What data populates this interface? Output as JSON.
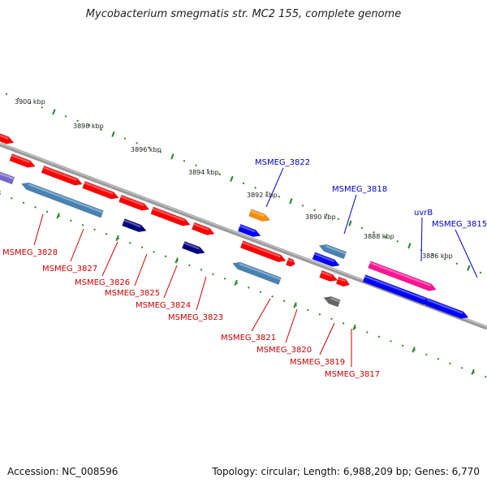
{
  "title": "Mycobacterium smegmatis str. MC2 155, complete genome",
  "footer": {
    "accession": "Accession: NC_008596",
    "topology": "Topology: circular; Length: 6,988,209 bp; Genes: 6,770"
  },
  "colors": {
    "backbone": "#8a8a8a",
    "tick": "#2a8a2a",
    "label_red": "#cc0000",
    "label_blue": "#0000cc"
  },
  "tick_labels": [
    "3900 kbp",
    "3898 kbp",
    "3896 kbp",
    "3894 kbp",
    "3892 kbp",
    "3890 kbp",
    "3888 kbp",
    "3886 kbp"
  ],
  "gene_labels": [
    {
      "text": "MSMEG_3828",
      "color": "red"
    },
    {
      "text": "MSMEG_3827",
      "color": "red"
    },
    {
      "text": "MSMEG_3826",
      "color": "red"
    },
    {
      "text": "MSMEG_3825",
      "color": "red"
    },
    {
      "text": "MSMEG_3824",
      "color": "red"
    },
    {
      "text": "MSMEG_3823",
      "color": "red"
    },
    {
      "text": "MSMEG_3822",
      "color": "blue"
    },
    {
      "text": "MSMEG_3821",
      "color": "red"
    },
    {
      "text": "MSMEG_3820",
      "color": "red"
    },
    {
      "text": "MSMEG_3819",
      "color": "red"
    },
    {
      "text": "MSMEG_3818",
      "color": "blue"
    },
    {
      "text": "MSMEG_3817",
      "color": "red"
    },
    {
      "text": "uvrB",
      "color": "blue"
    },
    {
      "text": "MSMEG_3815",
      "color": "blue"
    }
  ],
  "genes": [
    {
      "name": "MSMEG_3828-top",
      "color": "#ff0000"
    },
    {
      "name": "MSMEG_3828-a",
      "color": "#ff0000"
    },
    {
      "name": "MSMEG_3828-b",
      "color": "#7766cc"
    },
    {
      "name": "MSMEG_3827",
      "color": "#4682b4"
    },
    {
      "name": "MSMEG_3826-a",
      "color": "#ff0000"
    },
    {
      "name": "MSMEG_3826-b",
      "color": "#ff0000"
    },
    {
      "name": "MSMEG_3825",
      "color": "#ff0000"
    },
    {
      "name": "MSMEG_3825-rna",
      "color": "#000080"
    },
    {
      "name": "MSMEG_3824",
      "color": "#ff0000"
    },
    {
      "name": "MSMEG_3823-a",
      "color": "#ff0000"
    },
    {
      "name": "MSMEG_3823-rna",
      "color": "#000080"
    },
    {
      "name": "MSMEG_3822",
      "color": "#ff8c00"
    },
    {
      "name": "MSMEG_3822-b",
      "color": "#0000ff"
    },
    {
      "name": "MSMEG_3821",
      "color": "#ff0000"
    },
    {
      "name": "MSMEG_3821-b",
      "color": "#ff0000"
    },
    {
      "name": "MSMEG_3820",
      "color": "#4682b4"
    },
    {
      "name": "MSMEG_3818",
      "color": "#4682b4"
    },
    {
      "name": "MSMEG_3818-b",
      "color": "#0000ff"
    },
    {
      "name": "MSMEG_3819-a",
      "color": "#ff0000"
    },
    {
      "name": "MSMEG_3819-b",
      "color": "#ff0000"
    },
    {
      "name": "MSMEG_3817",
      "color": "#666666"
    },
    {
      "name": "uvrB",
      "color": "#ff1493"
    },
    {
      "name": "uvrB-b",
      "color": "#0000ff"
    },
    {
      "name": "MSMEG_3815",
      "color": "#0000ff"
    }
  ]
}
